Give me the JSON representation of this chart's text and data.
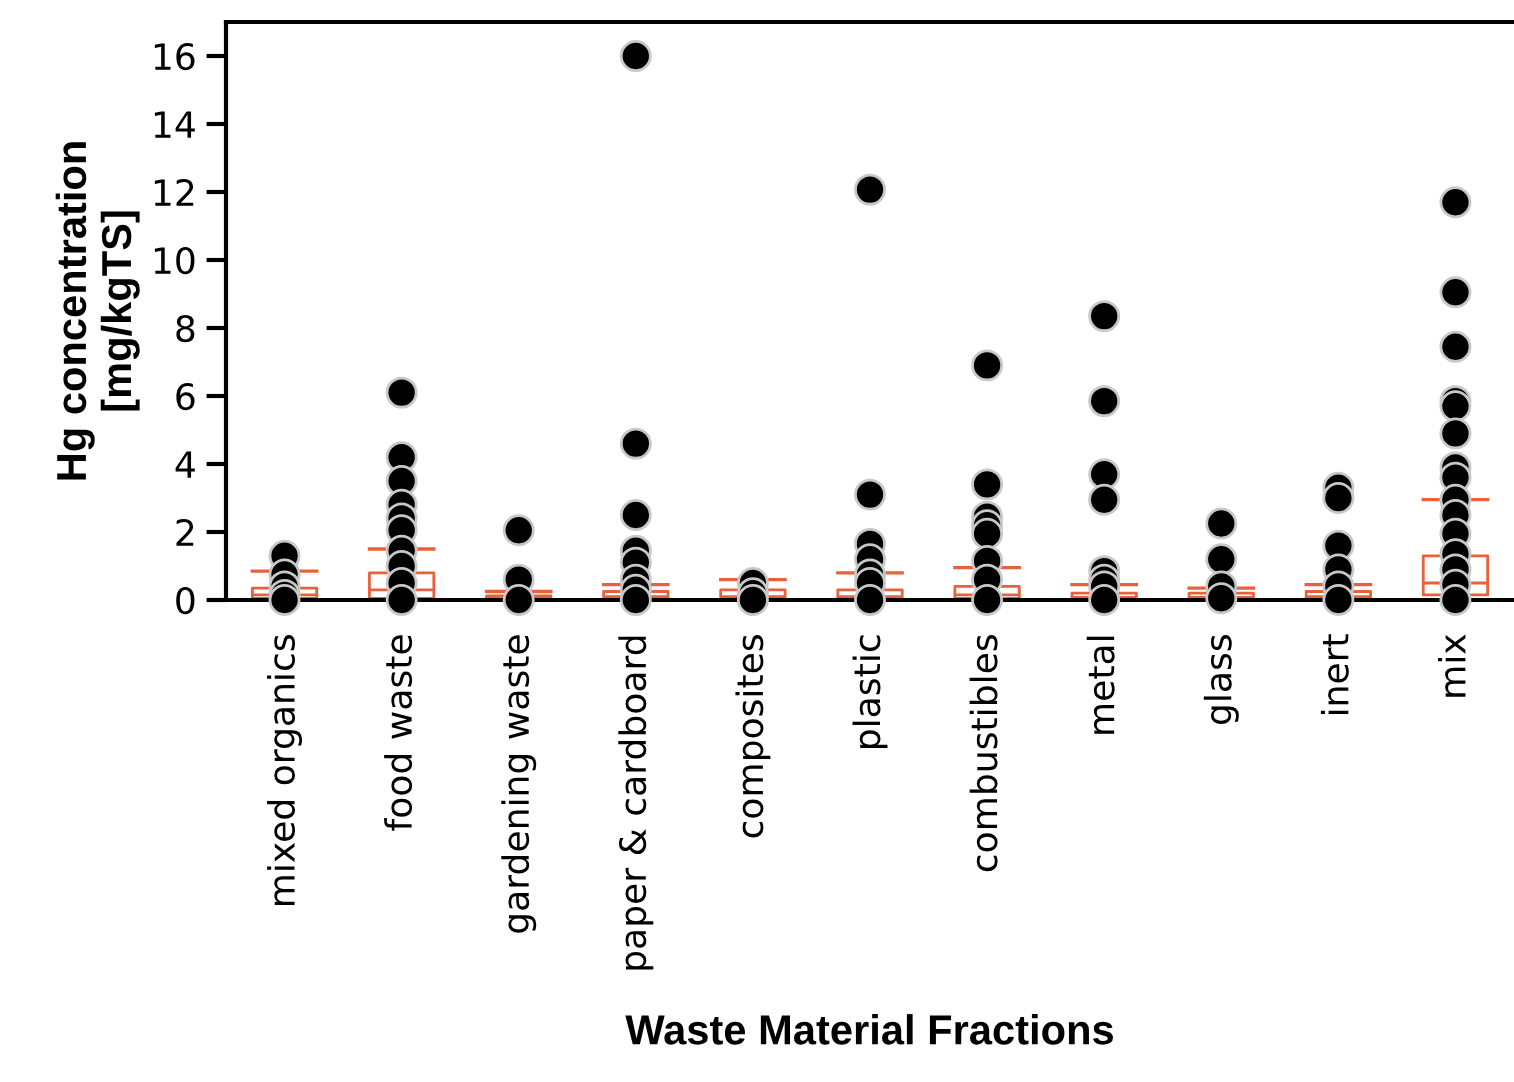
{
  "chart_data": {
    "type": "box",
    "xlabel": "Waste Material Fractions",
    "ylabel": "Hg concentration\n[mg/kgTS]",
    "categories": [
      "mixed organics",
      "food waste",
      "gardening waste",
      "paper & cardboard",
      "composites",
      "plastic",
      "combustibles",
      "metal",
      "glass",
      "inert",
      "mix"
    ],
    "color": "#e8603c",
    "boxes": [
      {
        "low": 0,
        "q1": 0.05,
        "median": 0.15,
        "q3": 0.35,
        "high": 0.85
      },
      {
        "low": 0,
        "q1": 0.05,
        "median": 0.3,
        "q3": 0.8,
        "high": 1.5
      },
      {
        "low": 0,
        "q1": 0.02,
        "median": 0.05,
        "q3": 0.12,
        "high": 0.25
      },
      {
        "low": 0,
        "q1": 0.03,
        "median": 0.1,
        "q3": 0.25,
        "high": 0.45
      },
      {
        "low": 0,
        "q1": 0.03,
        "median": 0.1,
        "q3": 0.3,
        "high": 0.6
      },
      {
        "low": 0,
        "q1": 0.03,
        "median": 0.1,
        "q3": 0.3,
        "high": 0.8
      },
      {
        "low": 0,
        "q1": 0.05,
        "median": 0.15,
        "q3": 0.4,
        "high": 0.95
      },
      {
        "low": 0,
        "q1": 0.02,
        "median": 0.08,
        "q3": 0.2,
        "high": 0.45
      },
      {
        "low": 0,
        "q1": 0.02,
        "median": 0.08,
        "q3": 0.2,
        "high": 0.35
      },
      {
        "low": 0,
        "q1": 0.03,
        "median": 0.1,
        "q3": 0.25,
        "high": 0.45
      },
      {
        "low": 0,
        "q1": 0.15,
        "median": 0.5,
        "q3": 1.3,
        "high": 2.95
      }
    ],
    "series": [
      {
        "type": "scatter",
        "color": "#000000",
        "x": [
          "mixed organics",
          "mixed organics",
          "mixed organics",
          "mixed organics",
          "mixed organics",
          "food waste",
          "food waste",
          "food waste",
          "food waste",
          "food waste",
          "food waste",
          "food waste",
          "food waste",
          "food waste",
          "food waste",
          "gardening waste",
          "gardening waste",
          "gardening waste",
          "paper & cardboard",
          "paper & cardboard",
          "paper & cardboard",
          "paper & cardboard",
          "paper & cardboard",
          "paper & cardboard",
          "paper & cardboard",
          "paper & cardboard",
          "composites",
          "composites",
          "composites",
          "plastic",
          "plastic",
          "plastic",
          "plastic",
          "plastic",
          "plastic",
          "plastic",
          "combustibles",
          "combustibles",
          "combustibles",
          "combustibles",
          "combustibles",
          "combustibles",
          "combustibles",
          "combustibles",
          "metal",
          "metal",
          "metal",
          "metal",
          "metal",
          "metal",
          "metal",
          "metal",
          "glass",
          "glass",
          "glass",
          "glass",
          "inert",
          "inert",
          "inert",
          "inert",
          "inert",
          "inert",
          "mix",
          "mix",
          "mix",
          "mix",
          "mix",
          "mix",
          "mix",
          "mix",
          "mix",
          "mix",
          "mix",
          "mix",
          "mix",
          "mix",
          "mix"
        ],
        "values": [
          1.3,
          0.75,
          0.4,
          0.15,
          0.0,
          6.1,
          4.2,
          3.5,
          2.8,
          2.4,
          2.05,
          1.45,
          1.0,
          0.5,
          0.0,
          2.05,
          0.6,
          0.0,
          16.0,
          4.6,
          2.5,
          1.45,
          1.1,
          0.6,
          0.3,
          0.0,
          0.5,
          0.2,
          0.0,
          12.07,
          3.1,
          1.65,
          1.2,
          0.75,
          0.5,
          0.0,
          6.9,
          3.4,
          2.45,
          2.2,
          1.95,
          1.15,
          0.6,
          0.0,
          8.35,
          5.85,
          3.7,
          2.95,
          0.85,
          0.6,
          0.4,
          0.0,
          2.25,
          1.2,
          0.4,
          0.05,
          3.3,
          3.0,
          1.6,
          0.9,
          0.4,
          0.0,
          11.7,
          9.05,
          7.45,
          5.85,
          5.7,
          4.9,
          3.9,
          3.6,
          2.95,
          2.5,
          1.95,
          1.35,
          0.9,
          0.45,
          0.0
        ]
      }
    ],
    "marker": "circle",
    "ylim": [
      0,
      17
    ],
    "yticks": [
      0,
      2,
      4,
      6,
      8,
      10,
      12,
      14,
      16
    ],
    "grid": false,
    "legend": false
  }
}
